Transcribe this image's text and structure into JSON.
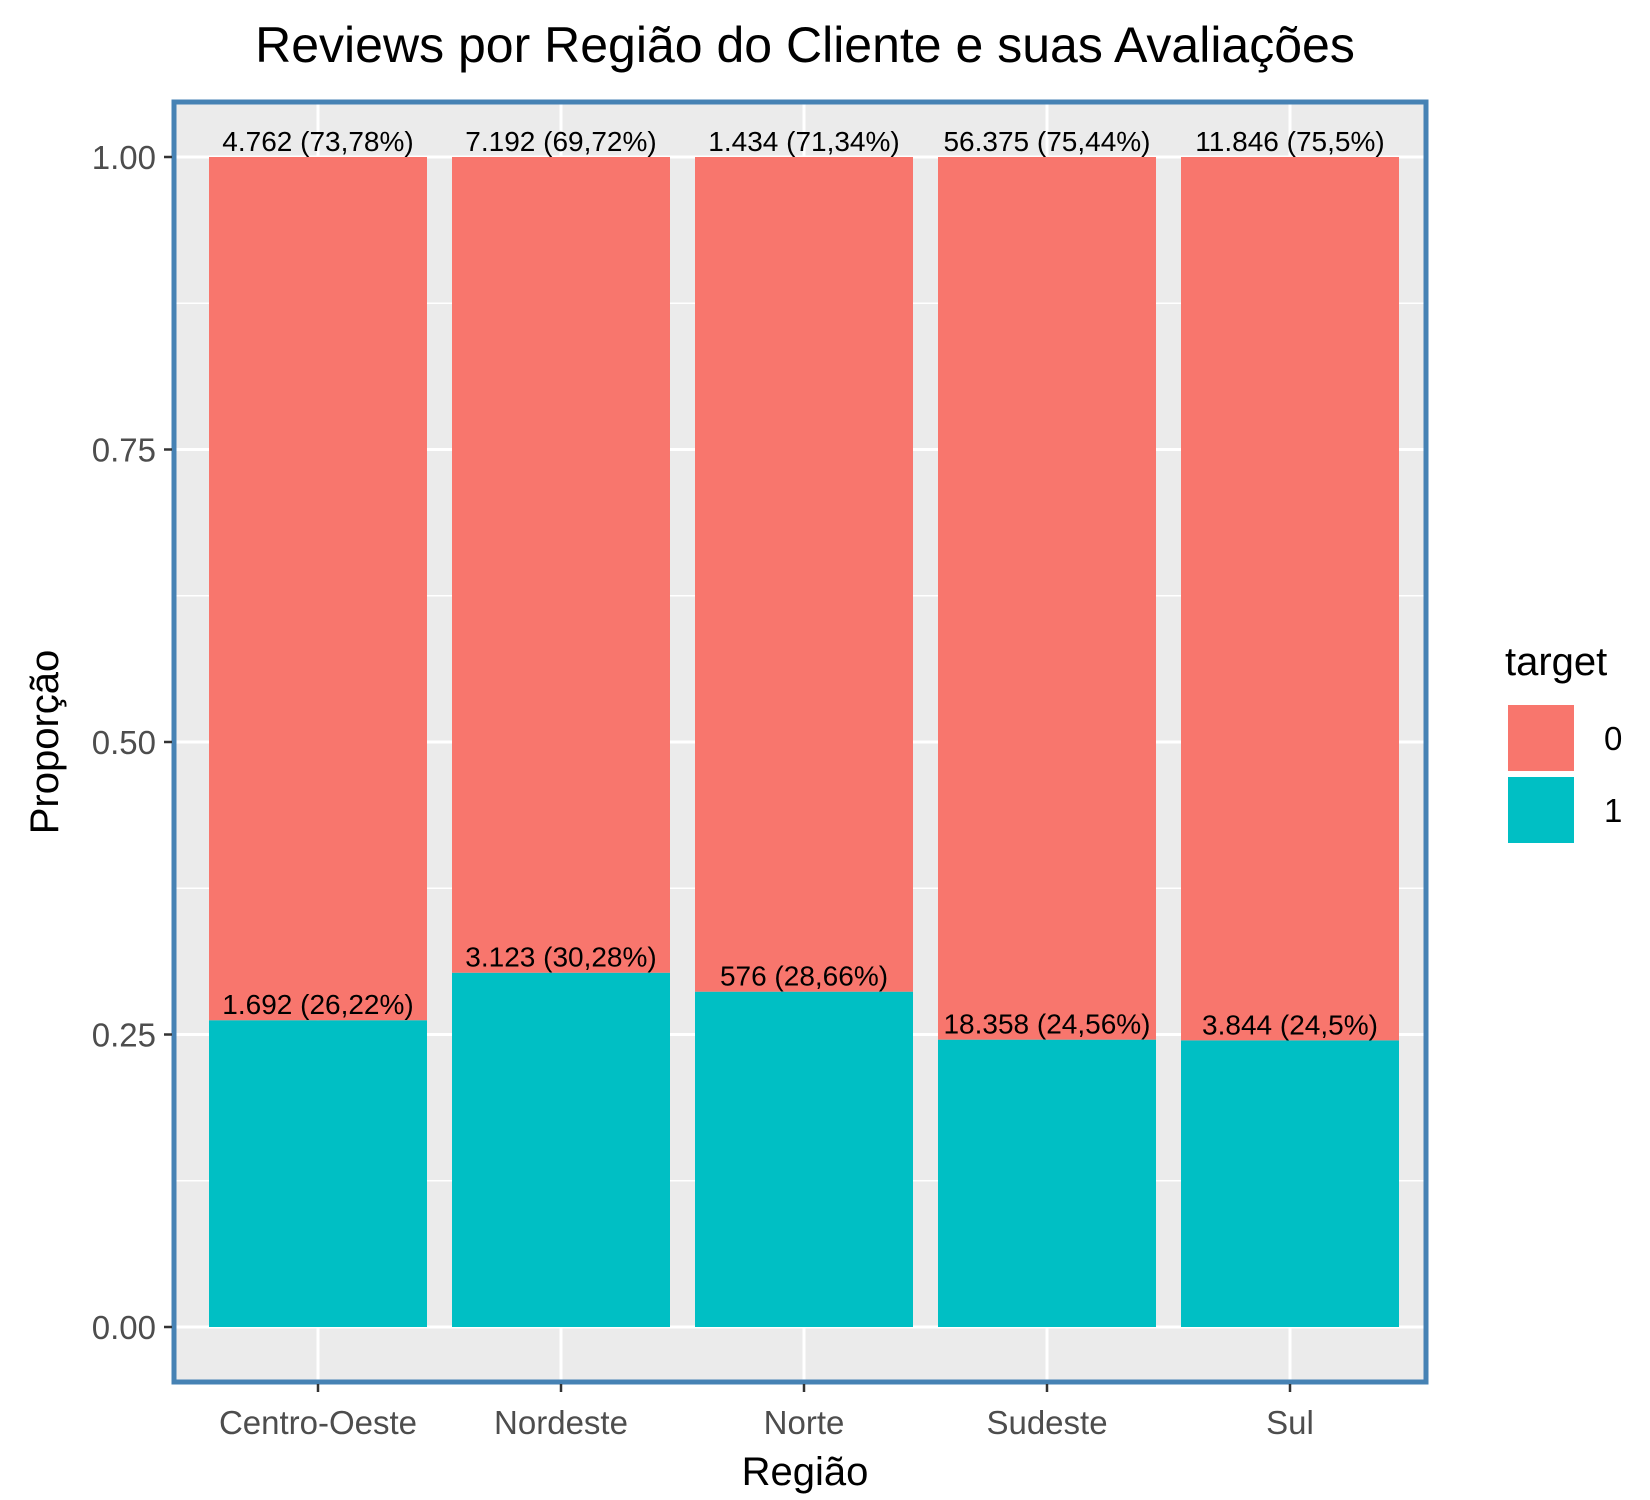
{
  "chart_data": {
    "type": "bar",
    "stacked": true,
    "title": "Reviews por Região do Cliente e suas Avaliações",
    "xlabel": "Região",
    "ylabel": "Proporção",
    "ylim": [
      0,
      1
    ],
    "yticks": [
      "0.00",
      "0.25",
      "0.50",
      "0.75",
      "1.00"
    ],
    "categories": [
      "Centro-Oeste",
      "Nordeste",
      "Norte",
      "Sudeste",
      "Sul"
    ],
    "legend": {
      "title": "target",
      "position": "right"
    },
    "grid": true,
    "series": [
      {
        "name": "0",
        "color": "#F8766D",
        "values": [
          0.7378,
          0.6972,
          0.7134,
          0.7544,
          0.755
        ],
        "labels": [
          "4.762 (73,78%)",
          "7.192 (69,72%)",
          "1.434 (71,34%)",
          "56.375 (75,44%)",
          "11.846 (75,5%)"
        ]
      },
      {
        "name": "1",
        "color": "#00BFC4",
        "values": [
          0.2622,
          0.3028,
          0.2866,
          0.2456,
          0.245
        ],
        "labels": [
          "1.692 (26,22%)",
          "3.123 (30,28%)",
          "576 (28,66%)",
          "18.358 (24,56%)",
          "3.844 (24,5%)"
        ]
      }
    ]
  }
}
